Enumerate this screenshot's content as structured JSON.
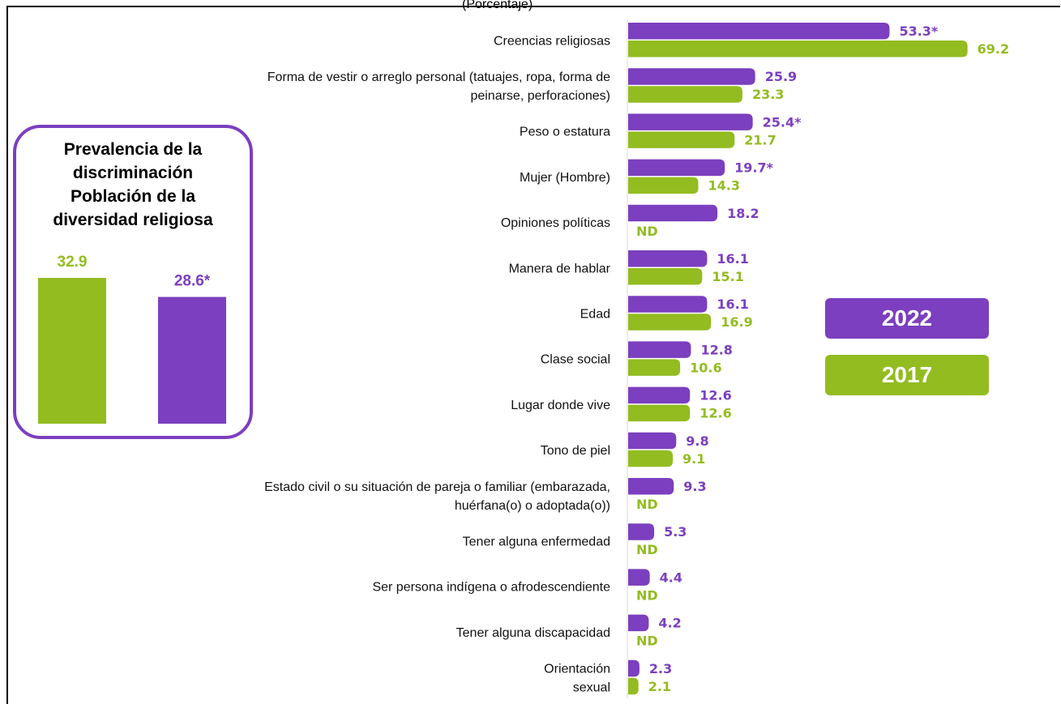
{
  "header": {
    "note": "(Porcentaje)"
  },
  "colors": {
    "s2022": "#7B3FBF",
    "s2017": "#93BC21"
  },
  "legend": [
    {
      "name": "2022",
      "color": "#7B3FBF"
    },
    {
      "name": "2017",
      "color": "#93BC21"
    }
  ],
  "chart_data": [
    {
      "type": "bar",
      "orientation": "horizontal",
      "categories": [
        [
          "Creencias religiosas"
        ],
        [
          "Forma de vestir o arreglo personal (tatuajes, ropa, forma de",
          "peinarse, perforaciones)"
        ],
        [
          "Peso o estatura"
        ],
        [
          "Mujer (Hombre)"
        ],
        [
          "Opiniones políticas"
        ],
        [
          "Manera de hablar"
        ],
        [
          "Edad"
        ],
        [
          "Clase social"
        ],
        [
          "Lugar donde vive"
        ],
        [
          "Tono de piel"
        ],
        [
          "Estado civil o su situación de pareja o familiar (embarazada,",
          "huérfana(o) o adoptada(o))"
        ],
        [
          "Tener alguna enfermedad"
        ],
        [
          "Ser persona indígena o afrodescendiente"
        ],
        [
          "Tener alguna discapacidad"
        ],
        [
          "Orientación",
          "sexual"
        ]
      ],
      "series": [
        {
          "name": "2022",
          "values": [
            53.3,
            25.9,
            25.4,
            19.7,
            18.2,
            16.1,
            16.1,
            12.8,
            12.6,
            9.8,
            9.3,
            5.3,
            4.4,
            4.2,
            2.3
          ],
          "labels": [
            "53.3*",
            "25.9",
            "25.4*",
            "19.7*",
            "18.2",
            "16.1",
            "16.1",
            "12.8",
            "12.6",
            "9.8",
            "9.3",
            "5.3",
            "4.4",
            "4.2",
            "2.3"
          ]
        },
        {
          "name": "2017",
          "values": [
            69.2,
            23.3,
            21.7,
            14.3,
            null,
            15.1,
            16.9,
            10.6,
            12.6,
            9.1,
            null,
            null,
            null,
            null,
            2.1
          ],
          "labels": [
            "69.2",
            "23.3",
            "21.7",
            "14.3",
            "ND",
            "15.1",
            "16.9",
            "10.6",
            "12.6",
            "9.1",
            "ND",
            "ND",
            "ND",
            "ND",
            "2.1"
          ]
        }
      ],
      "xlim": [
        0,
        70
      ],
      "grid": false,
      "legend_position": "right"
    },
    {
      "type": "bar",
      "title": [
        "Prevalencia de la",
        "discriminación",
        "Población de la",
        "diversidad religiosa"
      ],
      "categories": [
        "2017",
        "2022"
      ],
      "values": [
        32.9,
        28.6
      ],
      "labels": [
        "32.9",
        "28.6*"
      ],
      "ylim": [
        0,
        40
      ]
    }
  ]
}
